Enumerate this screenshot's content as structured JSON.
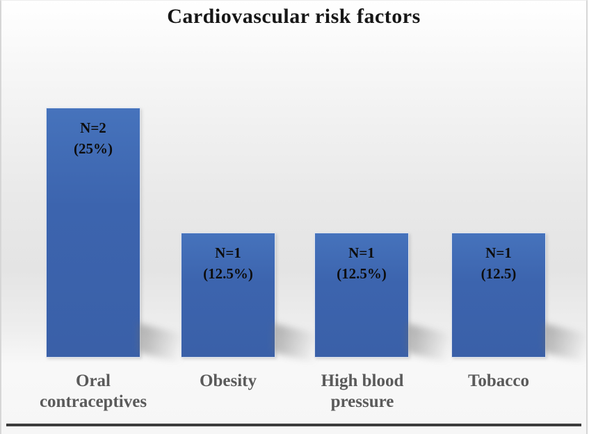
{
  "chart_data": {
    "type": "bar",
    "title": "Cardiovascular risk factors",
    "categories": [
      "Oral contraceptives",
      "Obesity",
      "High blood pressure",
      "Tobacco"
    ],
    "values": [
      2,
      1,
      1,
      1
    ],
    "percentages": [
      25,
      12.5,
      12.5,
      12.5
    ],
    "bar_labels": [
      [
        "N=2",
        "(25%)"
      ],
      [
        "N=1",
        "(12.5%)"
      ],
      [
        "N=1",
        "(12.5%)"
      ],
      [
        "N=1",
        "(12.5)"
      ]
    ],
    "xlabel": "",
    "ylabel": "",
    "ylim": [
      0,
      2.25
    ],
    "axes_visible": false,
    "grid": false,
    "legend": "none",
    "bar_color": "#3d64ad",
    "bar_label_color": "#0d0d0d",
    "category_label_color": "#5a5a5a",
    "title_color": "#161616"
  }
}
